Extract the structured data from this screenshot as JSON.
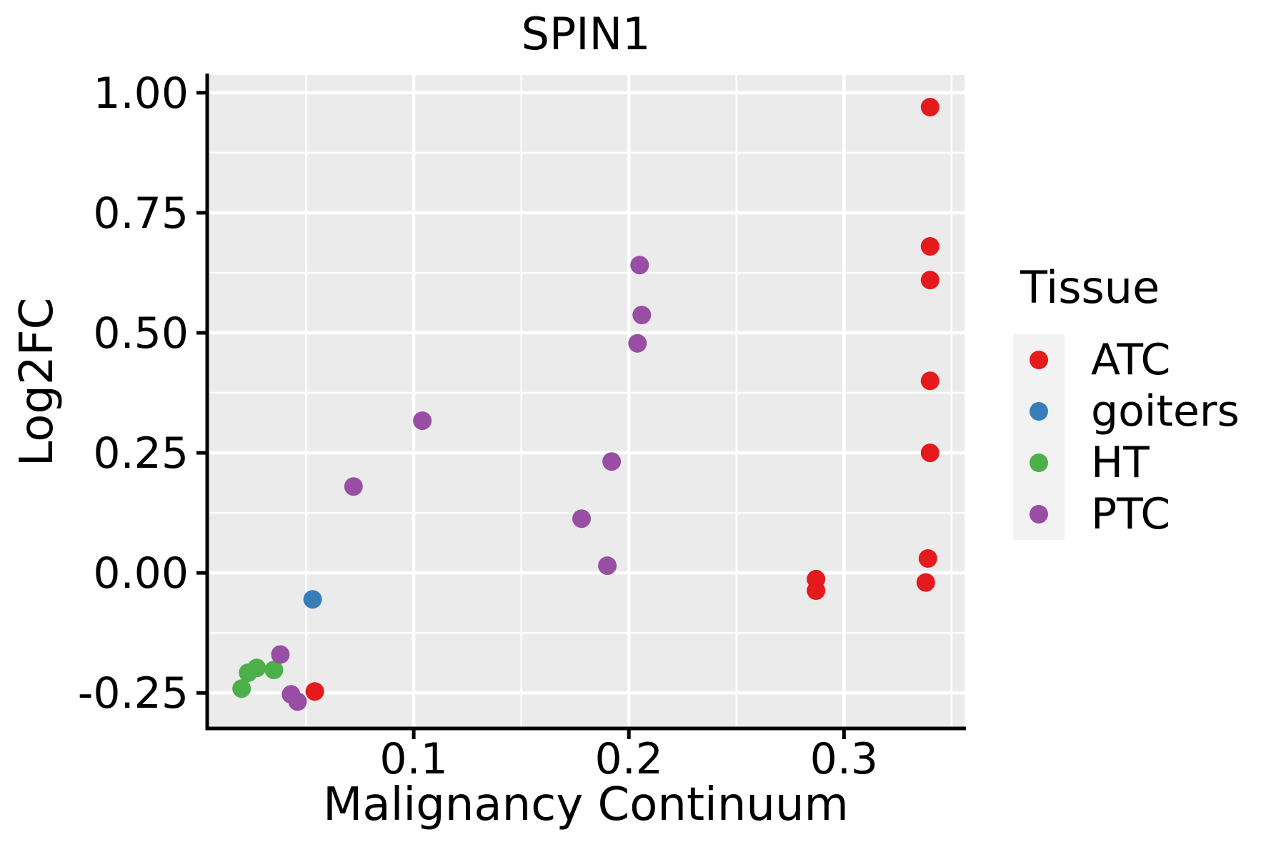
{
  "title": "SPIN1",
  "chart_data": {
    "type": "scatter",
    "title": "SPIN1",
    "xlabel": "Malignancy Continuum",
    "ylabel": "Log2FC",
    "xlim": [
      0.004,
      0.356
    ],
    "ylim": [
      -0.324,
      1.037
    ],
    "grid": "on",
    "panel_background": "#EBEBEB",
    "grid_color": "#FFFFFF",
    "axis_color": "#000000",
    "x_ticks": {
      "values": [
        0.1,
        0.2,
        0.3
      ],
      "labels": [
        "0.1",
        "0.2",
        "0.3"
      ]
    },
    "y_ticks": {
      "values": [
        1.0,
        0.75,
        0.5,
        0.25,
        0.0,
        -0.25
      ],
      "labels": [
        "1.00",
        "0.75",
        "0.50",
        "0.25",
        "0.00",
        "-0.25"
      ]
    },
    "x_minor_ticks": [
      0.05,
      0.15,
      0.25,
      0.35
    ],
    "y_minor_ticks": [
      0.875,
      0.625,
      0.375,
      0.125,
      -0.125
    ],
    "point_radius_px": 13,
    "legend": {
      "title": "Tissue",
      "position": "right",
      "key_background": "#F2F2F2"
    },
    "series": [
      {
        "name": "ATC",
        "color": "#E41A1C",
        "points": [
          [
            0.34,
            0.97
          ],
          [
            0.34,
            0.68
          ],
          [
            0.34,
            0.61
          ],
          [
            0.34,
            0.4
          ],
          [
            0.34,
            0.25
          ],
          [
            0.339,
            0.03
          ],
          [
            0.338,
            -0.02
          ],
          [
            0.287,
            -0.013
          ],
          [
            0.287,
            -0.037
          ],
          [
            0.054,
            -0.247
          ]
        ]
      },
      {
        "name": "goiters",
        "color": "#377EB8",
        "points": [
          [
            0.053,
            -0.055
          ]
        ]
      },
      {
        "name": "HT",
        "color": "#4DAF4A",
        "points": [
          [
            0.02,
            -0.241
          ],
          [
            0.023,
            -0.208
          ],
          [
            0.027,
            -0.198
          ],
          [
            0.035,
            -0.202
          ]
        ]
      },
      {
        "name": "PTC",
        "color": "#984EA3",
        "points": [
          [
            0.104,
            0.317
          ],
          [
            0.072,
            0.18
          ],
          [
            0.205,
            0.641
          ],
          [
            0.206,
            0.537
          ],
          [
            0.204,
            0.478
          ],
          [
            0.192,
            0.232
          ],
          [
            0.178,
            0.113
          ],
          [
            0.19,
            0.015
          ],
          [
            0.038,
            -0.17
          ],
          [
            0.043,
            -0.253
          ],
          [
            0.046,
            -0.268
          ]
        ]
      }
    ]
  }
}
